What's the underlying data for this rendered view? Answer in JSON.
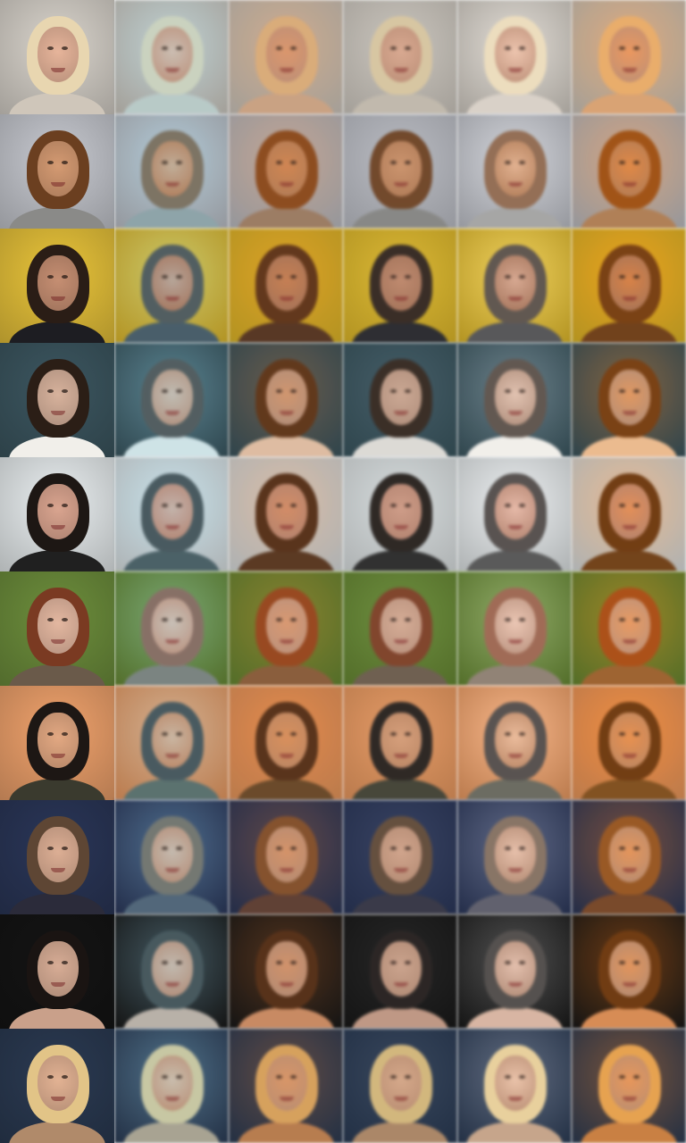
{
  "grid": {
    "columns": 6,
    "rows": 10,
    "row_palettes": [
      {
        "bg": "#d9d4cc",
        "hair": "#e8d6b0",
        "skin": "#e6b49a",
        "top": "#cfc6ba"
      },
      {
        "bg": "#c7c9d0",
        "hair": "#6b3f20",
        "skin": "#d49a72",
        "top": "#8a8a88"
      },
      {
        "bg": "#e9c43a",
        "hair": "#2a1d16",
        "skin": "#c58e72",
        "top": "#1d1d22"
      },
      {
        "bg": "#3c5660",
        "hair": "#2b1e16",
        "skin": "#d7b29c",
        "top": "#f1efea"
      },
      {
        "bg": "#e9eef0",
        "hair": "#1d1714",
        "skin": "#d9a48f",
        "top": "#202020"
      },
      {
        "bg": "#6d8e3c",
        "hair": "#7a3a22",
        "skin": "#e3b7a0",
        "top": "#6a5a4a"
      },
      {
        "bg": "#f0a26c",
        "hair": "#1d1714",
        "skin": "#e2a882",
        "top": "#3a3a2e"
      },
      {
        "bg": "#2a3658",
        "hair": "#5e4634",
        "skin": "#dcae94",
        "top": "#2b2b3a"
      },
      {
        "bg": "#141414",
        "hair": "#1a1412",
        "skin": "#d7ac95",
        "top": "#c9a08a"
      },
      {
        "bg": "#2b3a52",
        "hair": "#e2c487",
        "skin": "#e2b293",
        "top": "#b08a6a"
      }
    ],
    "column_tints": [
      {
        "name": "input",
        "tint": "#000000",
        "alpha": 0.0
      },
      {
        "name": "cyan-cool",
        "tint": "#9ad3e6",
        "alpha": 0.35
      },
      {
        "name": "warm-brown",
        "tint": "#b8652a",
        "alpha": 0.35
      },
      {
        "name": "neutral",
        "tint": "#7a7a7a",
        "alpha": 0.15
      },
      {
        "name": "high-contrast",
        "tint": "#ffffff",
        "alpha": 0.25
      },
      {
        "name": "orange",
        "tint": "#e0741a",
        "alpha": 0.4
      }
    ]
  }
}
